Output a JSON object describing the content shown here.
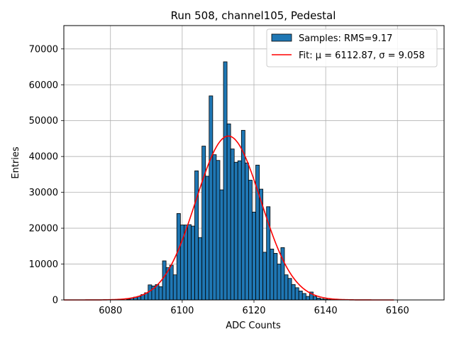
{
  "chart_data": {
    "type": "bar",
    "title": "Run 508, channel105, Pedestal",
    "xlabel": "ADC Counts",
    "ylabel": "Entries",
    "xlim": [
      6067,
      6173
    ],
    "ylim": [
      0,
      76500
    ],
    "x_ticks": [
      6080,
      6100,
      6120,
      6140,
      6160
    ],
    "y_ticks": [
      0,
      10000,
      20000,
      30000,
      40000,
      50000,
      60000,
      70000
    ],
    "x_tick_labels": [
      "6080",
      "6100",
      "6120",
      "6140",
      "6160"
    ],
    "y_tick_labels": [
      "0",
      "10000",
      "20000",
      "30000",
      "40000",
      "50000",
      "60000",
      "70000"
    ],
    "grid": true,
    "legend_position": "top-right",
    "colors": {
      "bars": "#1f77b4",
      "fit": "#ff0000",
      "edge": "#000000",
      "grid": "#b0b0b0"
    },
    "bin_width": 1,
    "histogram": {
      "name": "Samples: RMS=9.17",
      "bin_centers": [
        6085,
        6086,
        6087,
        6088,
        6089,
        6090,
        6091,
        6092,
        6093,
        6094,
        6095,
        6096,
        6097,
        6098,
        6099,
        6100,
        6101,
        6102,
        6103,
        6104,
        6105,
        6106,
        6107,
        6108,
        6109,
        6110,
        6111,
        6112,
        6113,
        6114,
        6115,
        6116,
        6117,
        6118,
        6119,
        6120,
        6121,
        6122,
        6123,
        6124,
        6125,
        6126,
        6127,
        6128,
        6129,
        6130,
        6131,
        6132,
        6133,
        6134,
        6135,
        6136,
        6137,
        6138,
        6139,
        6140,
        6141,
        6142
      ],
      "counts": [
        200,
        500,
        800,
        1000,
        1500,
        2000,
        4200,
        3900,
        4300,
        3700,
        10900,
        9000,
        9700,
        7000,
        24100,
        20900,
        20900,
        21000,
        20600,
        36000,
        17400,
        42900,
        34500,
        56900,
        40500,
        38900,
        30700,
        66400,
        49100,
        42100,
        38400,
        38800,
        47300,
        38200,
        33400,
        24500,
        37600,
        30900,
        13300,
        26000,
        14200,
        13000,
        10000,
        14600,
        7000,
        6000,
        4300,
        3400,
        2500,
        1800,
        1000,
        2200,
        1000,
        500,
        300,
        200,
        100,
        50
      ]
    },
    "fit": {
      "name": "Fit: μ = 6112.87, σ = 9.058",
      "mu": 6112.87,
      "sigma": 9.058,
      "amplitude": 45700,
      "x_range": [
        6067,
        6159
      ]
    }
  }
}
